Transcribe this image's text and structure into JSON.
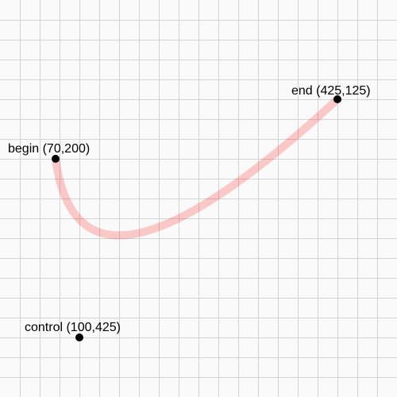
{
  "colors": {
    "background": "#fafafa",
    "grid": "#d4d4d4",
    "curve": "#ff0000",
    "curve_opacity": 0.2,
    "point": "#000000"
  },
  "grid": {
    "spacing": 25,
    "visible": true
  },
  "curve": {
    "type": "quadratic-bezier",
    "begin": {
      "x": 70,
      "y": 200
    },
    "control": {
      "x": 100,
      "y": 425
    },
    "end": {
      "x": 425,
      "y": 125
    }
  },
  "labels": {
    "begin": "begin (70,200)",
    "control": "control (100,425)",
    "end": "end (425,125)"
  }
}
